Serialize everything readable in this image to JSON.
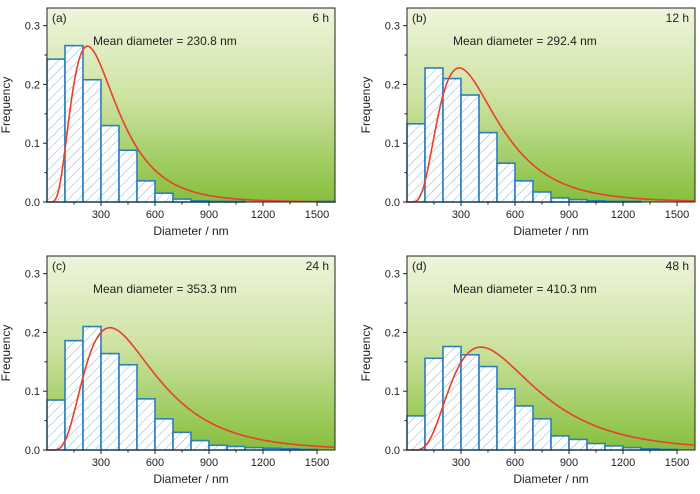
{
  "theme": {
    "gradient_top": "#eef5dc",
    "gradient_bottom": "#86bf3c",
    "bar_stroke": "#2b7fc0",
    "hatch_color": "#7aa7d4",
    "fit_color": "#e8402a"
  },
  "chart_data": [
    {
      "type": "bar",
      "panel_label": "(a)",
      "time_label": "6 h",
      "annotation": "Mean diameter = 230.8 nm",
      "xlabel": "Diameter / nm",
      "ylabel": "Frequency",
      "xlim": [
        0,
        1600
      ],
      "ylim": [
        0,
        0.33
      ],
      "xticks": [
        "300",
        "600",
        "900",
        "1200",
        "1500"
      ],
      "yticks": [
        "0.0",
        "0.1",
        "0.2",
        "0.3"
      ],
      "bin_width": 100,
      "bin_starts": [
        0,
        100,
        200,
        300,
        400,
        500,
        600,
        700,
        800,
        900,
        1000,
        1100,
        1200,
        1300,
        1400,
        1500
      ],
      "values": [
        0.243,
        0.266,
        0.208,
        0.13,
        0.088,
        0.036,
        0.015,
        0.005,
        0.002,
        0.001,
        0.001,
        0.0,
        0.0,
        0.0,
        0.0,
        0.001
      ],
      "fit": {
        "type": "lognormal",
        "peak_x": 225,
        "peak_y": 0.265
      }
    },
    {
      "type": "bar",
      "panel_label": "(b)",
      "time_label": "12 h",
      "annotation": "Mean diameter = 292.4 nm",
      "xlabel": "Diameter / nm",
      "ylabel": "Frequency",
      "xlim": [
        0,
        1600
      ],
      "ylim": [
        0,
        0.33
      ],
      "xticks": [
        "300",
        "600",
        "900",
        "1200",
        "1500"
      ],
      "yticks": [
        "0.0",
        "0.1",
        "0.2",
        "0.3"
      ],
      "bin_width": 100,
      "bin_starts": [
        0,
        100,
        200,
        300,
        400,
        500,
        600,
        700,
        800,
        900,
        1000,
        1100,
        1200
      ],
      "values": [
        0.133,
        0.228,
        0.21,
        0.182,
        0.118,
        0.066,
        0.036,
        0.017,
        0.007,
        0.004,
        0.002,
        0.001,
        0.001
      ],
      "fit": {
        "type": "lognormal",
        "peak_x": 290,
        "peak_y": 0.228
      }
    },
    {
      "type": "bar",
      "panel_label": "(c)",
      "time_label": "24 h",
      "annotation": "Mean diameter = 353.3 nm",
      "xlabel": "Diameter / nm",
      "ylabel": "Frequency",
      "xlim": [
        0,
        1600
      ],
      "ylim": [
        0,
        0.33
      ],
      "xticks": [
        "300",
        "600",
        "900",
        "1200",
        "1500"
      ],
      "yticks": [
        "0.0",
        "0.1",
        "0.2",
        "0.3"
      ],
      "bin_width": 100,
      "bin_starts": [
        0,
        100,
        200,
        300,
        400,
        500,
        600,
        700,
        800,
        900,
        1000,
        1100,
        1200,
        1300,
        1400
      ],
      "values": [
        0.085,
        0.186,
        0.21,
        0.164,
        0.145,
        0.087,
        0.053,
        0.03,
        0.016,
        0.008,
        0.006,
        0.004,
        0.003,
        0.002,
        0.001
      ],
      "fit": {
        "type": "lognormal",
        "peak_x": 350,
        "peak_y": 0.208
      }
    },
    {
      "type": "bar",
      "panel_label": "(d)",
      "time_label": "48 h",
      "annotation": "Mean diameter = 410.3 nm",
      "xlabel": "Diameter / nm",
      "ylabel": "Frequency",
      "xlim": [
        0,
        1600
      ],
      "ylim": [
        0,
        0.33
      ],
      "xticks": [
        "300",
        "600",
        "900",
        "1200",
        "1500"
      ],
      "yticks": [
        "0.0",
        "0.1",
        "0.2",
        "0.3"
      ],
      "bin_width": 100,
      "bin_starts": [
        0,
        100,
        200,
        300,
        400,
        500,
        600,
        700,
        800,
        900,
        1000,
        1100,
        1200,
        1300,
        1400
      ],
      "values": [
        0.058,
        0.156,
        0.176,
        0.162,
        0.142,
        0.104,
        0.075,
        0.053,
        0.024,
        0.018,
        0.011,
        0.007,
        0.004,
        0.002,
        0.001
      ],
      "fit": {
        "type": "lognormal",
        "peak_x": 410,
        "peak_y": 0.175
      }
    }
  ]
}
